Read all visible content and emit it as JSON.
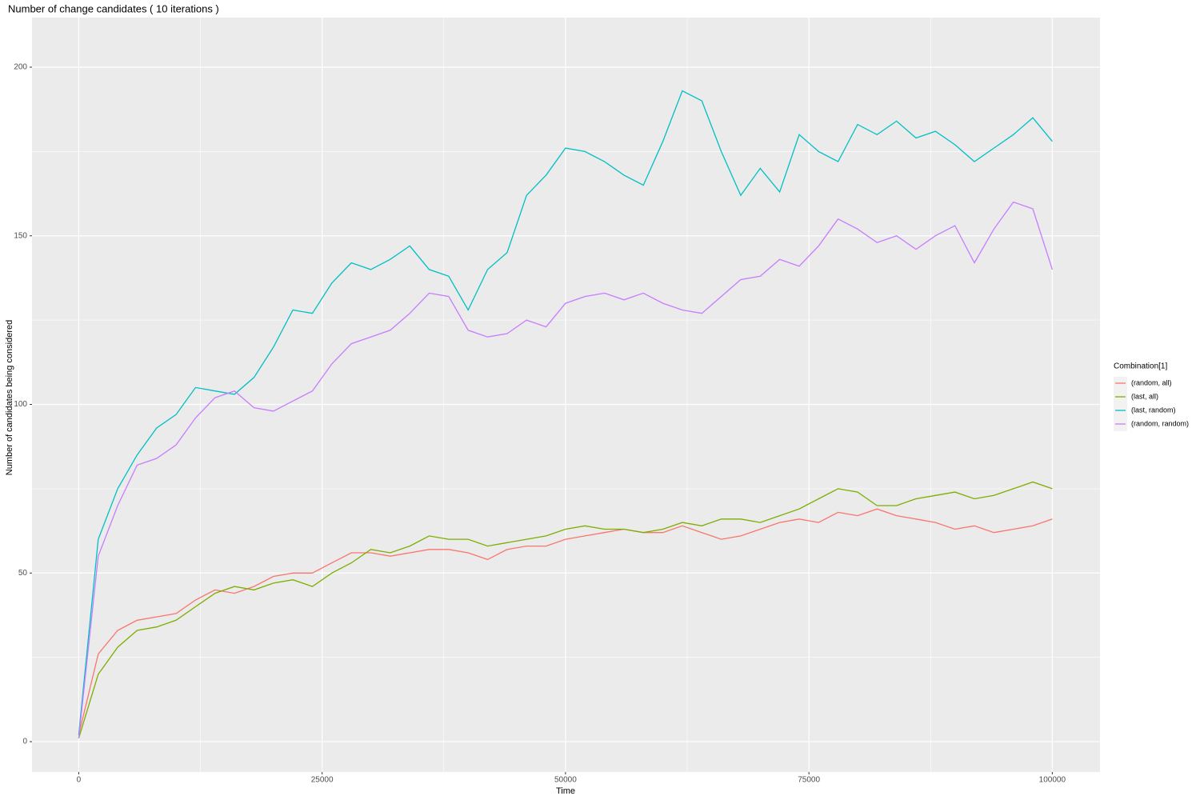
{
  "chart_data": {
    "type": "line",
    "title": "Number of change candidates ( 10 iterations )",
    "x_label": "Time",
    "y_label": "Number of candidates being considered",
    "legend_title": "Combination[1]",
    "legend": "right",
    "grid": true,
    "x": [
      0,
      2000,
      4000,
      6000,
      8000,
      10000,
      12000,
      14000,
      16000,
      18000,
      20000,
      22000,
      24000,
      26000,
      28000,
      30000,
      32000,
      34000,
      36000,
      38000,
      40000,
      42000,
      44000,
      46000,
      48000,
      50000,
      52000,
      54000,
      56000,
      58000,
      60000,
      62000,
      64000,
      66000,
      68000,
      70000,
      72000,
      74000,
      76000,
      78000,
      80000,
      82000,
      84000,
      86000,
      88000,
      90000,
      92000,
      94000,
      96000,
      98000,
      100000
    ],
    "series": [
      {
        "name": " (random, all)",
        "color": "#F8766D",
        "values": [
          2,
          26,
          33,
          36,
          37,
          38,
          42,
          45,
          44,
          46,
          49,
          50,
          50,
          53,
          56,
          56,
          55,
          56,
          57,
          57,
          56,
          54,
          57,
          58,
          58,
          60,
          61,
          62,
          63,
          62,
          62,
          64,
          62,
          60,
          61,
          63,
          65,
          66,
          65,
          68,
          67,
          69,
          67,
          66,
          65,
          63,
          64,
          62,
          63,
          64,
          66
        ]
      },
      {
        "name": "(last, all)",
        "color": "#7CAE00",
        "values": [
          1,
          20,
          28,
          33,
          34,
          36,
          40,
          44,
          46,
          45,
          47,
          48,
          46,
          50,
          53,
          57,
          56,
          58,
          61,
          60,
          60,
          58,
          59,
          60,
          61,
          63,
          64,
          63,
          63,
          62,
          63,
          65,
          64,
          66,
          66,
          65,
          67,
          69,
          72,
          75,
          74,
          70,
          70,
          72,
          73,
          74,
          72,
          73,
          75,
          77,
          75
        ]
      },
      {
        "name": "(last, random)",
        "color": "#00BFC4",
        "values": [
          2,
          60,
          75,
          85,
          93,
          97,
          105,
          104,
          103,
          108,
          117,
          128,
          127,
          136,
          142,
          140,
          143,
          147,
          140,
          138,
          128,
          140,
          145,
          162,
          168,
          176,
          175,
          172,
          168,
          165,
          178,
          193,
          190,
          175,
          162,
          170,
          163,
          180,
          175,
          172,
          183,
          180,
          184,
          179,
          181,
          177,
          172,
          176,
          180,
          185,
          178
        ]
      },
      {
        "name": "(random, random)",
        "color": "#C77CFF",
        "values": [
          1,
          55,
          70,
          82,
          84,
          88,
          96,
          102,
          104,
          99,
          98,
          101,
          104,
          112,
          118,
          120,
          122,
          127,
          133,
          132,
          122,
          120,
          121,
          125,
          123,
          130,
          132,
          133,
          131,
          133,
          130,
          128,
          127,
          132,
          137,
          138,
          143,
          141,
          147,
          155,
          152,
          148,
          150,
          146,
          150,
          153,
          142,
          152,
          160,
          158,
          140
        ]
      }
    ],
    "xlim": [
      -4800,
      104900
    ],
    "ylim": [
      -9,
      214.7
    ],
    "xticks": [
      0,
      25000,
      50000,
      75000,
      100000
    ],
    "yticks": [
      0,
      50,
      100,
      150,
      200
    ]
  }
}
